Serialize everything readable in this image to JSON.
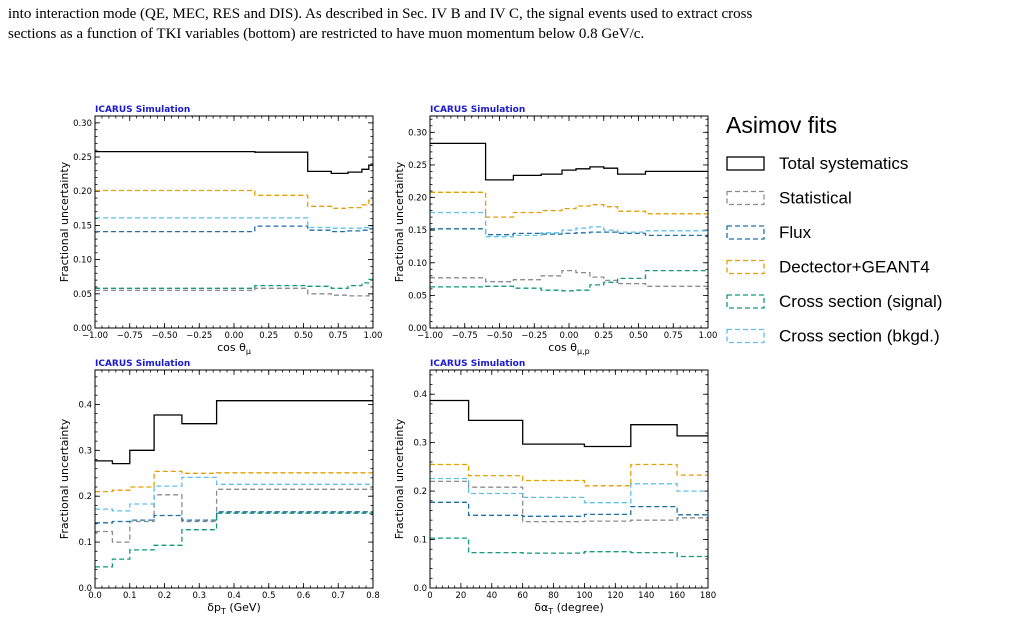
{
  "caption": {
    "line1": "into interaction mode (QE, MEC, RES and DIS). As described in Sec. IV B and IV C, the signal events used to extract cross",
    "line2": "sections as a function of TKI variables (bottom) are restricted to have muon momentum below 0.8 GeV/c."
  },
  "legend": {
    "title": "Asimov fits",
    "entries": [
      {
        "label": "Total systematics",
        "color": "#000000",
        "dashed": false
      },
      {
        "label": "Statistical",
        "color": "#8c8c8c",
        "dashed": true
      },
      {
        "label": "Flux",
        "color": "#1f6fa8",
        "dashed": true
      },
      {
        "label": "Dectector+GEANT4",
        "color": "#e69f00",
        "dashed": true
      },
      {
        "label": "Cross section (signal)",
        "color": "#129a78",
        "dashed": true
      },
      {
        "label": "Cross section (bkgd.)",
        "color": "#5fc0ea",
        "dashed": true
      }
    ]
  },
  "chart_data": [
    {
      "type": "line",
      "brand": "ICARUS",
      "brand_suffix": "Simulation",
      "xlabel": "cos θ_μ",
      "ylabel": "Fractional uncertainty",
      "xlim": [
        -1.0,
        1.0
      ],
      "ylim": [
        0.0,
        0.31
      ],
      "xticks": [
        -1.0,
        -0.75,
        -0.5,
        -0.25,
        0.0,
        0.25,
        0.5,
        0.75,
        1.0
      ],
      "xticklabels": [
        "−1.00",
        "−0.75",
        "−0.50",
        "−0.25",
        "0.00",
        "0.25",
        "0.50",
        "0.75",
        "1.00"
      ],
      "yticks": [
        0.0,
        0.05,
        0.1,
        0.15,
        0.2,
        0.25,
        0.3
      ],
      "yticklabels": [
        "0.00",
        "0.05",
        "0.10",
        "0.15",
        "0.20",
        "0.25",
        "0.30"
      ],
      "bin_edges": [
        -1.0,
        0.15,
        0.53,
        0.7,
        0.82,
        0.92,
        0.97,
        1.0
      ],
      "series": [
        {
          "name": "Total systematics",
          "values": [
            0.258,
            0.257,
            0.229,
            0.226,
            0.228,
            0.232,
            0.238
          ]
        },
        {
          "name": "Statistical",
          "values": [
            0.055,
            0.058,
            0.05,
            0.048,
            0.047,
            0.047,
            0.048
          ]
        },
        {
          "name": "Flux",
          "values": [
            0.141,
            0.149,
            0.143,
            0.141,
            0.142,
            0.143,
            0.145
          ]
        },
        {
          "name": "Dectector+GEANT4",
          "values": [
            0.201,
            0.194,
            0.178,
            0.175,
            0.176,
            0.18,
            0.187
          ]
        },
        {
          "name": "Cross section (signal)",
          "values": [
            0.058,
            0.062,
            0.061,
            0.058,
            0.062,
            0.066,
            0.071
          ]
        },
        {
          "name": "Cross section (bkgd.)",
          "values": [
            0.161,
            0.161,
            0.147,
            0.146,
            0.146,
            0.147,
            0.148
          ]
        }
      ]
    },
    {
      "type": "line",
      "brand": "ICARUS",
      "brand_suffix": "Simulation",
      "xlabel": "cos θ_μ,p",
      "ylabel": "Fractional uncertainty",
      "xlim": [
        -1.0,
        1.0
      ],
      "ylim": [
        0.0,
        0.325
      ],
      "xticks": [
        -1.0,
        -0.75,
        -0.5,
        -0.25,
        0.0,
        0.25,
        0.5,
        0.75,
        1.0
      ],
      "xticklabels": [
        "−1.00",
        "−0.75",
        "−0.50",
        "−0.25",
        "0.00",
        "0.25",
        "0.50",
        "0.75",
        "1.00"
      ],
      "yticks": [
        0.0,
        0.05,
        0.1,
        0.15,
        0.2,
        0.25,
        0.3
      ],
      "yticklabels": [
        "0.00",
        "0.05",
        "0.10",
        "0.15",
        "0.20",
        "0.25",
        "0.30"
      ],
      "bin_edges": [
        -1.0,
        -0.6,
        -0.4,
        -0.2,
        -0.05,
        0.05,
        0.15,
        0.25,
        0.35,
        0.55,
        1.0
      ],
      "series": [
        {
          "name": "Total systematics",
          "values": [
            0.283,
            0.227,
            0.234,
            0.236,
            0.242,
            0.244,
            0.247,
            0.245,
            0.236,
            0.24
          ]
        },
        {
          "name": "Statistical",
          "values": [
            0.077,
            0.071,
            0.074,
            0.08,
            0.088,
            0.085,
            0.078,
            0.073,
            0.068,
            0.064
          ]
        },
        {
          "name": "Flux",
          "values": [
            0.152,
            0.143,
            0.145,
            0.144,
            0.145,
            0.146,
            0.147,
            0.147,
            0.145,
            0.142
          ]
        },
        {
          "name": "Dectector+GEANT4",
          "values": [
            0.208,
            0.17,
            0.177,
            0.18,
            0.183,
            0.187,
            0.189,
            0.186,
            0.179,
            0.175
          ]
        },
        {
          "name": "Cross section (signal)",
          "values": [
            0.063,
            0.064,
            0.061,
            0.058,
            0.057,
            0.058,
            0.066,
            0.07,
            0.076,
            0.088
          ]
        },
        {
          "name": "Cross section (bkgd.)",
          "values": [
            0.177,
            0.14,
            0.142,
            0.146,
            0.15,
            0.153,
            0.155,
            0.15,
            0.147,
            0.149
          ]
        }
      ]
    },
    {
      "type": "line",
      "brand": "ICARUS",
      "brand_suffix": "Simulation",
      "xlabel": "δp_T (GeV)",
      "ylabel": "Fractional uncertainty",
      "xlim": [
        0.0,
        0.8
      ],
      "ylim": [
        0.0,
        0.475
      ],
      "xticks": [
        0.0,
        0.1,
        0.2,
        0.3,
        0.4,
        0.5,
        0.6,
        0.7,
        0.8
      ],
      "xticklabels": [
        "0.0",
        "0.1",
        "0.2",
        "0.3",
        "0.4",
        "0.5",
        "0.6",
        "0.7",
        "0.8"
      ],
      "yticks": [
        0.0,
        0.1,
        0.2,
        0.3,
        0.4
      ],
      "yticklabels": [
        "0.0",
        "0.1",
        "0.2",
        "0.3",
        "0.4"
      ],
      "bin_edges": [
        0.0,
        0.05,
        0.1,
        0.17,
        0.25,
        0.35,
        0.55,
        0.8
      ],
      "series": [
        {
          "name": "Total systematics",
          "values": [
            0.277,
            0.271,
            0.3,
            0.377,
            0.358,
            0.408,
            0.408
          ]
        },
        {
          "name": "Statistical",
          "values": [
            0.123,
            0.1,
            0.145,
            0.203,
            0.145,
            0.215,
            0.215
          ]
        },
        {
          "name": "Flux",
          "values": [
            0.142,
            0.145,
            0.148,
            0.158,
            0.148,
            0.166,
            0.166
          ]
        },
        {
          "name": "Dectector+GEANT4",
          "values": [
            0.21,
            0.213,
            0.22,
            0.254,
            0.25,
            0.251,
            0.251
          ]
        },
        {
          "name": "Cross section (signal)",
          "values": [
            0.046,
            0.063,
            0.083,
            0.093,
            0.127,
            0.163,
            0.163
          ]
        },
        {
          "name": "Cross section (bkgd.)",
          "values": [
            0.172,
            0.168,
            0.183,
            0.222,
            0.241,
            0.226,
            0.226
          ]
        }
      ]
    },
    {
      "type": "line",
      "brand": "ICARUS",
      "brand_suffix": "Simulation",
      "xlabel": "δα_T (degree)",
      "ylabel": "Fractional uncertainty",
      "xlim": [
        0,
        180
      ],
      "ylim": [
        0.0,
        0.45
      ],
      "xticks": [
        0,
        20,
        40,
        60,
        80,
        100,
        120,
        140,
        160,
        180
      ],
      "xticklabels": [
        "0",
        "20",
        "40",
        "60",
        "80",
        "100",
        "120",
        "140",
        "160",
        "180"
      ],
      "yticks": [
        0.0,
        0.1,
        0.2,
        0.3,
        0.4
      ],
      "yticklabels": [
        "0.0",
        "0.1",
        "0.2",
        "0.3",
        "0.4"
      ],
      "bin_edges": [
        0,
        25,
        60,
        100,
        130,
        160,
        180
      ],
      "series": [
        {
          "name": "Total systematics",
          "values": [
            0.387,
            0.346,
            0.297,
            0.292,
            0.337,
            0.314
          ]
        },
        {
          "name": "Statistical",
          "values": [
            0.22,
            0.208,
            0.137,
            0.138,
            0.14,
            0.145
          ]
        },
        {
          "name": "Flux",
          "values": [
            0.177,
            0.15,
            0.148,
            0.152,
            0.168,
            0.151
          ]
        },
        {
          "name": "Dectector+GEANT4",
          "values": [
            0.255,
            0.232,
            0.222,
            0.211,
            0.255,
            0.233
          ]
        },
        {
          "name": "Cross section (signal)",
          "values": [
            0.103,
            0.073,
            0.072,
            0.075,
            0.073,
            0.065
          ]
        },
        {
          "name": "Cross section (bkgd.)",
          "values": [
            0.226,
            0.195,
            0.187,
            0.176,
            0.215,
            0.2
          ]
        }
      ]
    }
  ]
}
